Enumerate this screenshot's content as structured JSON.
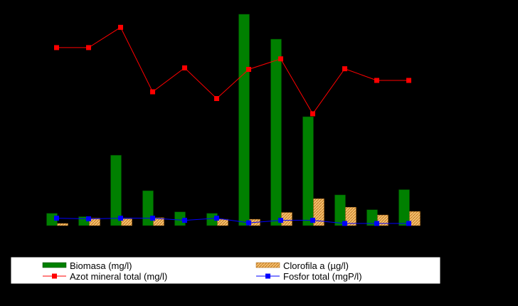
{
  "chart_data": {
    "type": "bar",
    "categories": [
      "",
      "",
      "",
      "",
      "",
      "",
      "",
      "",
      "",
      "",
      "",
      ""
    ],
    "xlabel": "",
    "ylabel": "",
    "ylim": [
      0,
      100
    ],
    "y2lim": [
      0,
      100
    ],
    "grid": false,
    "legend_position": "bottom",
    "series": [
      {
        "name": "Biomasa (mg/l)",
        "kind": "bar",
        "axis": "left",
        "color": "#008000",
        "values": [
          5.8,
          4.2,
          33.3,
          16.5,
          6.5,
          5.8,
          100,
          88.2,
          51.5,
          14.5,
          7.5,
          17.0
        ]
      },
      {
        "name": "Clorofila a (µg/l)",
        "kind": "bar",
        "axis": "left",
        "color": "#F0B060",
        "values": [
          1.0,
          3.5,
          3.2,
          3.7,
          0,
          3.0,
          3.0,
          6.2,
          12.7,
          8.7,
          5.0,
          6.7
        ]
      },
      {
        "name": "Azot mineral total (mg/l)",
        "kind": "line",
        "axis": "right",
        "color": "#FF0000",
        "marker": "square",
        "values": [
          84.2,
          84.2,
          93.8,
          63.3,
          74.6,
          60.1,
          73.9,
          78.9,
          52.9,
          74.2,
          68.7,
          68.7
        ]
      },
      {
        "name": "Fosfor total (mgP/l)",
        "kind": "line",
        "axis": "right",
        "color": "#0000FF",
        "marker": "square",
        "values": [
          3.5,
          3.2,
          3.5,
          3.5,
          2.5,
          3.5,
          1.3,
          2.5,
          2.5,
          1.0,
          1.0,
          1.0
        ]
      }
    ]
  }
}
